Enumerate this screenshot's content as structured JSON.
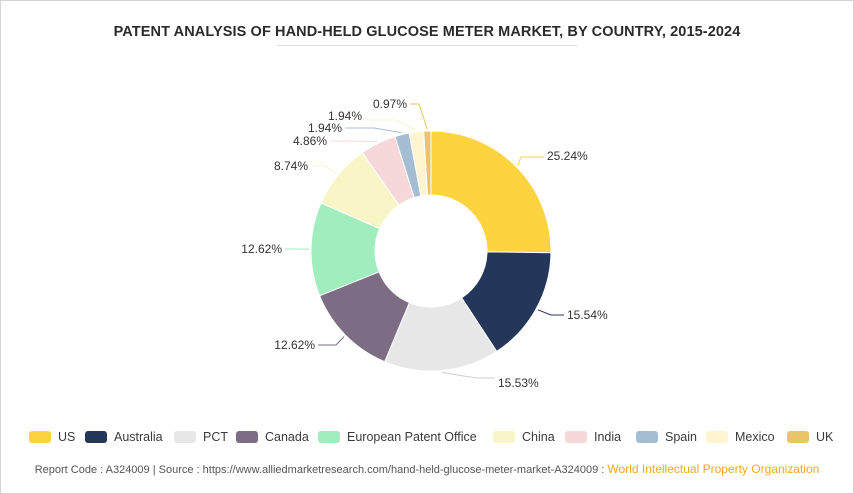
{
  "title": "PATENT ANALYSIS OF HAND-HELD GLUCOSE METER MARKET, BY COUNTRY, 2015-2024",
  "footer": {
    "report_code": "Report Code : A324009",
    "separator": "|",
    "source": "Source : https://www.alliedmarketresearch.com/hand-held-glucose-meter-market-A324009 :",
    "org": "World Intellectual Property Organization"
  },
  "chart_data": {
    "type": "pie",
    "variant": "donut",
    "legend_position": "bottom",
    "categories": [
      "US",
      "Australia",
      "PCT",
      "Canada",
      "European Patent Office",
      "China",
      "India",
      "Spain",
      "Mexico",
      "UK"
    ],
    "values": [
      25.24,
      15.54,
      15.53,
      12.62,
      12.62,
      8.74,
      4.86,
      1.94,
      1.94,
      0.97
    ],
    "labels": [
      "25.24%",
      "15.54%",
      "15.53%",
      "12.62%",
      "12.62%",
      "8.74%",
      "4.86%",
      "1.94%",
      "1.94%",
      "0.97%"
    ],
    "colors": [
      "#fdd33f",
      "#243659",
      "#e7e7e7",
      "#7c6d84",
      "#a0edbd",
      "#f8f5c6",
      "#f7d8da",
      "#a4bdd3",
      "#fef4d0",
      "#e9c468"
    ]
  }
}
